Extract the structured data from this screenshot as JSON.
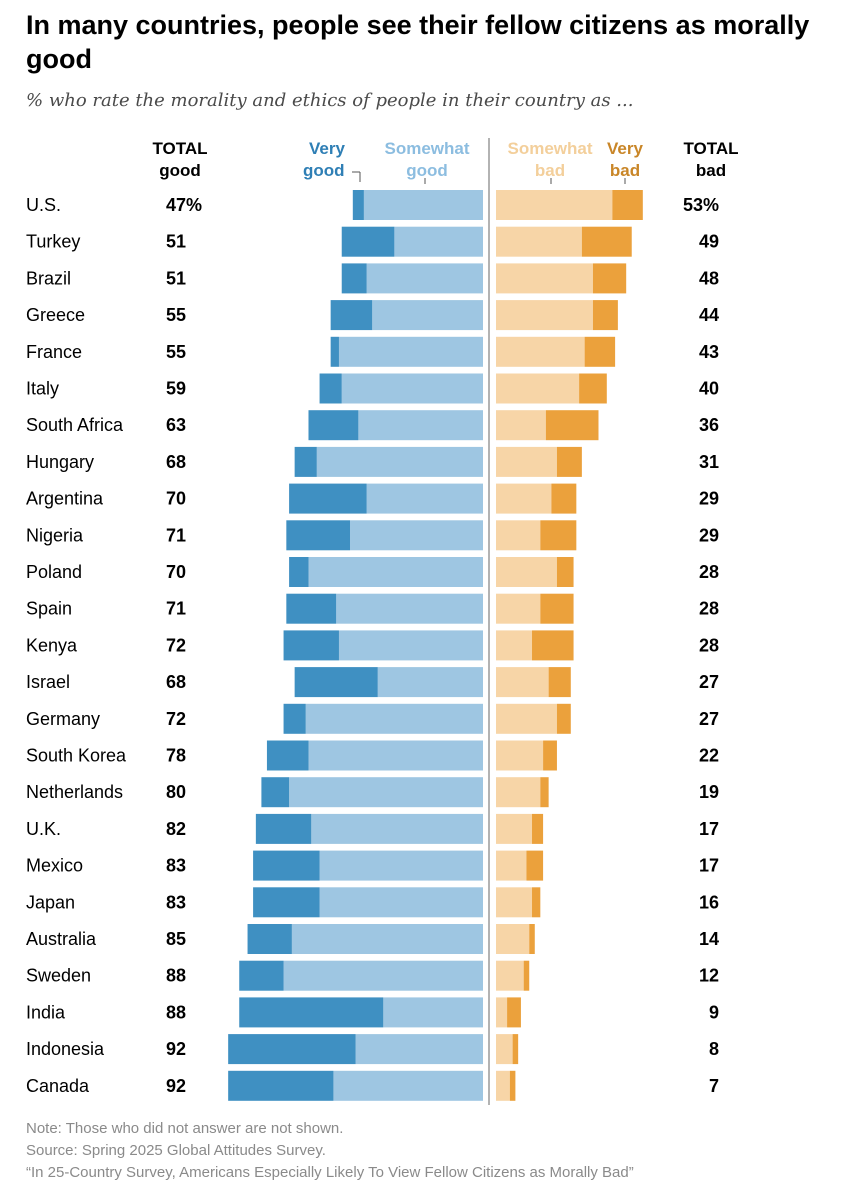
{
  "title": "In many countries, people see their fellow citizens as morally good",
  "subtitle": "% who rate the morality and ethics of people in their country as ...",
  "headers": {
    "total_good": [
      "TOTAL",
      "good"
    ],
    "very_good": [
      "Very",
      "good"
    ],
    "somewhat_good": [
      "Somewhat",
      "good"
    ],
    "somewhat_bad": [
      "Somewhat",
      "bad"
    ],
    "very_bad": [
      "Very",
      "bad"
    ],
    "total_bad": [
      "TOTAL",
      "bad"
    ]
  },
  "colors": {
    "very_good": "#3f90c2",
    "somewhat_good": "#9ec6e2",
    "somewhat_bad": "#f7d5a7",
    "very_bad": "#eba13c",
    "very_good_label": "#2f7fb5",
    "somewhat_good_label": "#8cbde0",
    "somewhat_bad_label": "#f3cf9b",
    "very_bad_label": "#c98628"
  },
  "chart_data": {
    "type": "bar",
    "orientation": "horizontal-diverging",
    "categories": [
      "U.S.",
      "Turkey",
      "Brazil",
      "Greece",
      "France",
      "Italy",
      "South Africa",
      "Hungary",
      "Argentina",
      "Nigeria",
      "Poland",
      "Spain",
      "Kenya",
      "Israel",
      "Germany",
      "South Korea",
      "Netherlands",
      "U.K.",
      "Mexico",
      "Japan",
      "Australia",
      "Sweden",
      "India",
      "Indonesia",
      "Canada"
    ],
    "series": [
      {
        "name": "Very good",
        "values": [
          4,
          19,
          9,
          15,
          3,
          8,
          18,
          8,
          28,
          23,
          7,
          18,
          20,
          30,
          8,
          15,
          10,
          20,
          24,
          24,
          16,
          16,
          52,
          46,
          38
        ]
      },
      {
        "name": "Somewhat good",
        "values": [
          43,
          32,
          42,
          40,
          52,
          51,
          45,
          60,
          42,
          48,
          63,
          53,
          52,
          38,
          64,
          63,
          70,
          62,
          59,
          59,
          69,
          72,
          36,
          46,
          54
        ]
      },
      {
        "name": "Somewhat bad",
        "values": [
          42,
          31,
          35,
          35,
          32,
          30,
          18,
          22,
          20,
          16,
          22,
          16,
          13,
          19,
          22,
          17,
          16,
          13,
          11,
          13,
          12,
          10,
          4,
          6,
          5
        ]
      },
      {
        "name": "Very bad",
        "values": [
          11,
          18,
          12,
          9,
          11,
          10,
          19,
          9,
          9,
          13,
          6,
          12,
          15,
          8,
          5,
          5,
          3,
          4,
          6,
          3,
          2,
          2,
          5,
          2,
          2
        ]
      }
    ],
    "total_good": [
      "47%",
      "51",
      "51",
      "55",
      "55",
      "59",
      "63",
      "68",
      "70",
      "71",
      "70",
      "71",
      "72",
      "68",
      "72",
      "78",
      "80",
      "82",
      "83",
      "83",
      "85",
      "88",
      "88",
      "92",
      "92"
    ],
    "total_bad": [
      "53%",
      "49",
      "48",
      "44",
      "43",
      "40",
      "36",
      "31",
      "29",
      "29",
      "28",
      "28",
      "28",
      "27",
      "27",
      "22",
      "19",
      "17",
      "17",
      "16",
      "14",
      "12",
      "9",
      "8",
      "7"
    ]
  },
  "notes": {
    "note": "Note: Those who did not answer are not shown.",
    "source": "Source: Spring 2025 Global Attitudes Survey.",
    "report": "“In 25-Country Survey, Americans Especially Likely To View Fellow Citizens as Morally Bad”"
  }
}
